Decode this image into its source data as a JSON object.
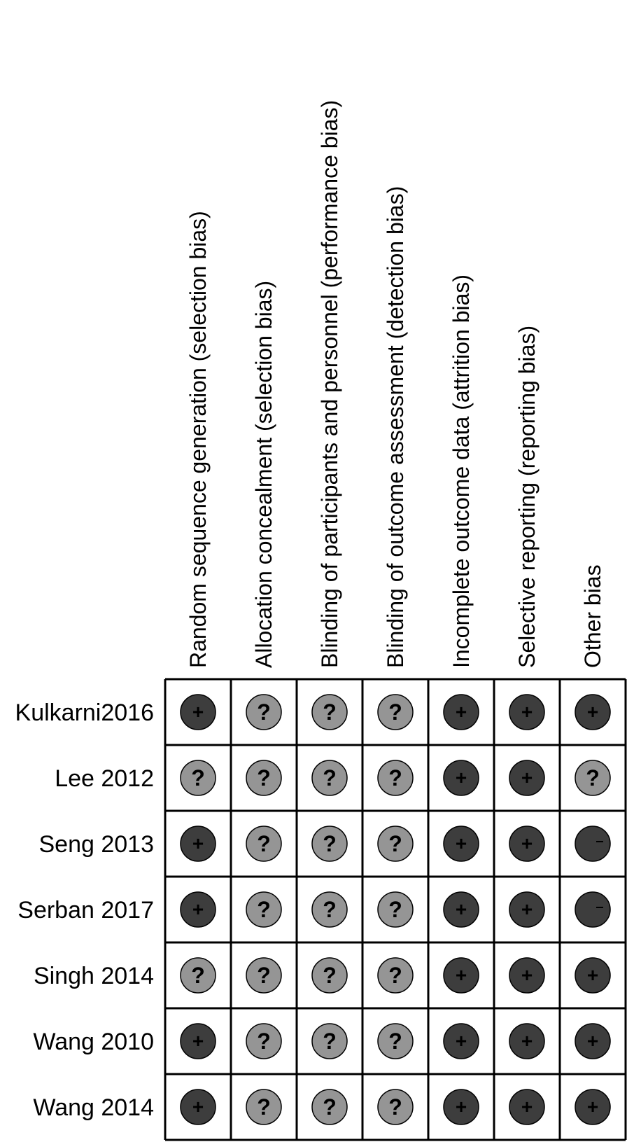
{
  "chart_data": {
    "type": "table",
    "columns": [
      "Random sequence generation (selection bias)",
      "Allocation concealment (selection bias)",
      "Blinding of participants and personnel (performance bias)",
      "Blinding of outcome assessment (detection bias)",
      "Incomplete outcome data (attrition bias)",
      "Selective reporting (reporting bias)",
      "Other bias"
    ],
    "rows": [
      "Kulkarni2016",
      "Lee 2012",
      "Seng 2013",
      "Serban 2017",
      "Singh 2014",
      "Wang 2010",
      "Wang 2014"
    ],
    "values": [
      [
        "+",
        "?",
        "?",
        "?",
        "+",
        "+",
        "+"
      ],
      [
        "?",
        "?",
        "?",
        "?",
        "+",
        "+",
        "?"
      ],
      [
        "+",
        "?",
        "?",
        "?",
        "+",
        "+",
        "-"
      ],
      [
        "+",
        "?",
        "?",
        "?",
        "+",
        "+",
        "-"
      ],
      [
        "?",
        "?",
        "?",
        "?",
        "+",
        "+",
        "+"
      ],
      [
        "+",
        "?",
        "?",
        "?",
        "+",
        "+",
        "+"
      ],
      [
        "+",
        "?",
        "?",
        "?",
        "+",
        "+",
        "+"
      ]
    ],
    "symbols": {
      "+": "+",
      "?": "?",
      "-": "−"
    },
    "colors": {
      "low_risk": "#3d3d3d",
      "unclear_risk": "#959595",
      "high_risk": "#3d3d3d",
      "grid": "#000000",
      "background": "#ffffff"
    }
  }
}
